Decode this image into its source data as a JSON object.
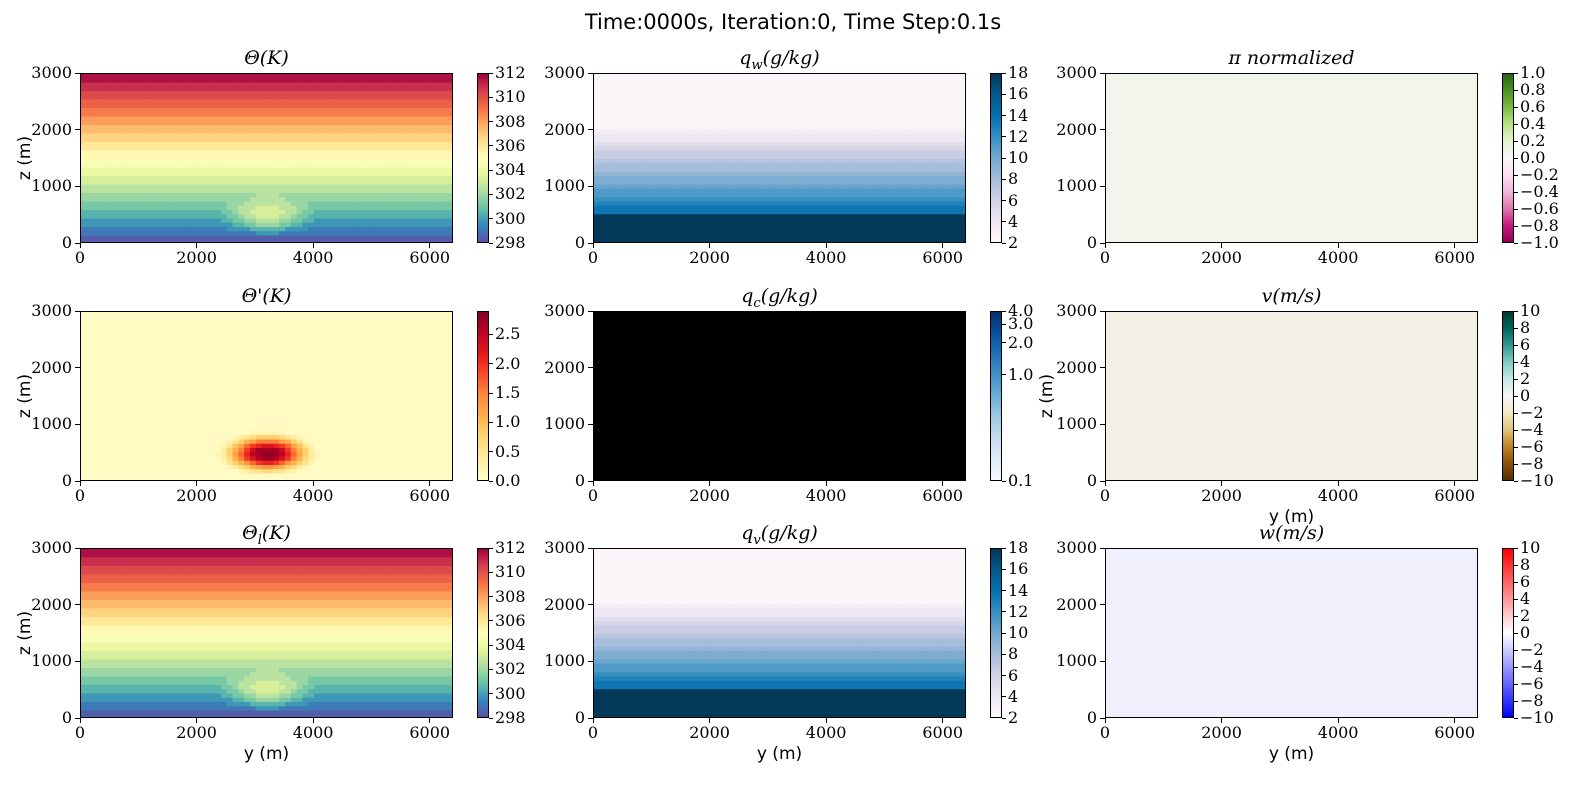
{
  "suptitle": "Time:0000s, Iteration:0, Time Step:0.1s",
  "chart_data": [
    {
      "type": "heatmap",
      "title": "Θ(K)",
      "xlabel": "",
      "ylabel": "z (m)",
      "xlim": [
        0,
        6400
      ],
      "ylim": [
        0,
        3000
      ],
      "xticks": [
        "0",
        "2000",
        "4000",
        "6000"
      ],
      "yticks": [
        "0",
        "1000",
        "2000",
        "3000"
      ],
      "colormap": "Spectral_r",
      "colorbar": {
        "min": 298,
        "max": 312,
        "ticks": [
          "298",
          "300",
          "302",
          "304",
          "306",
          "308",
          "310",
          "312"
        ]
      },
      "field": "linear gradient in z from 298 at z=0 to 312 at z=3000, plus warm bubble centered at y=3200, z=500",
      "bubble": {
        "center_y": 3200,
        "center_z": 500,
        "amplitude": 2.9
      }
    },
    {
      "type": "heatmap",
      "title": "q_w(g/kg)",
      "xlabel": "",
      "ylabel": "",
      "xlim": [
        0,
        6400
      ],
      "ylim": [
        0,
        3000
      ],
      "xticks": [
        "0",
        "2000",
        "4000",
        "6000"
      ],
      "yticks": [
        "0",
        "1000",
        "2000",
        "3000"
      ],
      "colormap": "PuBu",
      "colorbar": {
        "min": 2,
        "max": 18,
        "ticks": [
          "2",
          "4",
          "6",
          "8",
          "10",
          "12",
          "14",
          "16",
          "18"
        ]
      },
      "field": "decreasing in z from 18 at z=0 to about 2 above z=2100"
    },
    {
      "type": "heatmap",
      "title": "π normalized",
      "xlabel": "",
      "ylabel": "",
      "xlim": [
        0,
        6400
      ],
      "ylim": [
        0,
        3000
      ],
      "xticks": [
        "0",
        "2000",
        "4000",
        "6000"
      ],
      "yticks": [
        "0",
        "1000",
        "2000",
        "3000"
      ],
      "colormap": "PiYG",
      "colorbar": {
        "min": -1.0,
        "max": 1.0,
        "ticks": [
          "−1.0",
          "−0.8",
          "−0.6",
          "−0.4",
          "−0.2",
          "0.0",
          "0.2",
          "0.4",
          "0.6",
          "0.8",
          "1.0"
        ]
      },
      "uniform_color": "#f2f5ec"
    },
    {
      "type": "heatmap",
      "title": "Θ'(K)",
      "xlabel": "",
      "ylabel": "z (m)",
      "xlim": [
        0,
        6400
      ],
      "ylim": [
        0,
        3000
      ],
      "xticks": [
        "0",
        "2000",
        "4000",
        "6000"
      ],
      "yticks": [
        "0",
        "1000",
        "2000",
        "3000"
      ],
      "colormap": "YlOrRd",
      "colorbar": {
        "min": 0.0,
        "max": 2.9,
        "ticks": [
          "0.0",
          "0.5",
          "1.0",
          "1.5",
          "2.0",
          "2.5"
        ]
      },
      "bubble": {
        "center_y": 3200,
        "center_z": 500,
        "amplitude": 2.9
      }
    },
    {
      "type": "heatmap",
      "title": "q_c(g/kg)",
      "xlabel": "",
      "ylabel": "",
      "xlim": [
        0,
        6400
      ],
      "ylim": [
        0,
        3000
      ],
      "xticks": [
        "0",
        "2000",
        "4000",
        "6000"
      ],
      "yticks": [
        "0",
        "1000",
        "2000",
        "3000"
      ],
      "colormap": "Blues",
      "colorbar": {
        "min": 0.1,
        "max": 4.0,
        "scale": "log",
        "ticks": [
          "0.1",
          "1.0",
          "2.0",
          "3.0",
          "4.0"
        ]
      },
      "uniform_color": "#000000"
    },
    {
      "type": "heatmap",
      "title": "v(m/s)",
      "xlabel": "y (m)",
      "ylabel": "z (m)",
      "xlim": [
        0,
        6400
      ],
      "ylim": [
        0,
        3000
      ],
      "xticks": [
        "0",
        "2000",
        "4000",
        "6000"
      ],
      "yticks": [
        "0",
        "1000",
        "2000",
        "3000"
      ],
      "colormap": "BrBG",
      "colorbar": {
        "min": -10,
        "max": 10,
        "ticks": [
          "−10",
          "−8",
          "−6",
          "−4",
          "−2",
          "0",
          "2",
          "4",
          "6",
          "8",
          "10"
        ]
      },
      "uniform_color": "#f4f0e6"
    },
    {
      "type": "heatmap",
      "title": "Θ_l(K)",
      "xlabel": "y (m)",
      "ylabel": "z (m)",
      "xlim": [
        0,
        6400
      ],
      "ylim": [
        0,
        3000
      ],
      "xticks": [
        "0",
        "2000",
        "4000",
        "6000"
      ],
      "yticks": [
        "0",
        "1000",
        "2000",
        "3000"
      ],
      "colormap": "Spectral_r",
      "colorbar": {
        "min": 298,
        "max": 312,
        "ticks": [
          "298",
          "300",
          "302",
          "304",
          "306",
          "308",
          "310",
          "312"
        ]
      },
      "bubble": {
        "center_y": 3200,
        "center_z": 500,
        "amplitude": 2.9
      }
    },
    {
      "type": "heatmap",
      "title": "q_v(g/kg)",
      "xlabel": "y (m)",
      "ylabel": "",
      "xlim": [
        0,
        6400
      ],
      "ylim": [
        0,
        3000
      ],
      "xticks": [
        "0",
        "2000",
        "4000",
        "6000"
      ],
      "yticks": [
        "0",
        "1000",
        "2000",
        "3000"
      ],
      "colormap": "PuBu",
      "colorbar": {
        "min": 2,
        "max": 18,
        "ticks": [
          "2",
          "4",
          "6",
          "8",
          "10",
          "12",
          "14",
          "16",
          "18"
        ]
      }
    },
    {
      "type": "heatmap",
      "title": "w(m/s)",
      "xlabel": "y (m)",
      "ylabel": "",
      "xlim": [
        0,
        6400
      ],
      "ylim": [
        0,
        3000
      ],
      "xticks": [
        "0",
        "2000",
        "4000",
        "6000"
      ],
      "yticks": [
        "0",
        "1000",
        "2000",
        "3000"
      ],
      "colormap": "bwr",
      "colorbar": {
        "min": -10,
        "max": 10,
        "ticks": [
          "−10",
          "−8",
          "−6",
          "−4",
          "−2",
          "0",
          "2",
          "4",
          "6",
          "8",
          "10"
        ]
      },
      "uniform_color": "#f0f0fc"
    }
  ],
  "colormaps": {
    "Spectral_r": [
      "#5e4fa2",
      "#3288bd",
      "#66c2a5",
      "#abdda4",
      "#e6f598",
      "#ffffbf",
      "#fee08b",
      "#fdae61",
      "#f46d43",
      "#d53e4f",
      "#9e0142"
    ],
    "PuBu": [
      "#fff7fb",
      "#ece7f2",
      "#d0d1e6",
      "#a6bddb",
      "#74a9cf",
      "#3690c0",
      "#0570b0",
      "#045a8d",
      "#023858"
    ],
    "PiYG": [
      "#8e0152",
      "#c51b7d",
      "#de77ae",
      "#f1b6da",
      "#fde0ef",
      "#f7f7f7",
      "#e6f5d0",
      "#b8e186",
      "#7fbc41",
      "#4d9221",
      "#276419"
    ],
    "YlOrRd": [
      "#ffffcc",
      "#ffeda0",
      "#fed976",
      "#feb24c",
      "#fd8d3c",
      "#fc4e2a",
      "#e31a1c",
      "#bd0026",
      "#800026"
    ],
    "Blues": [
      "#f7fbff",
      "#deebf7",
      "#c6dbef",
      "#9ecae1",
      "#6baed6",
      "#4292c6",
      "#2171b5",
      "#08519c",
      "#08306b"
    ],
    "BrBG": [
      "#543005",
      "#8c510a",
      "#bf812d",
      "#dfc27d",
      "#f6e8c3",
      "#f5f5f5",
      "#c7eae5",
      "#80cdc1",
      "#35978f",
      "#01665e",
      "#003c30"
    ],
    "bwr": [
      "#0000ff",
      "#ffffff",
      "#ff0000"
    ]
  }
}
